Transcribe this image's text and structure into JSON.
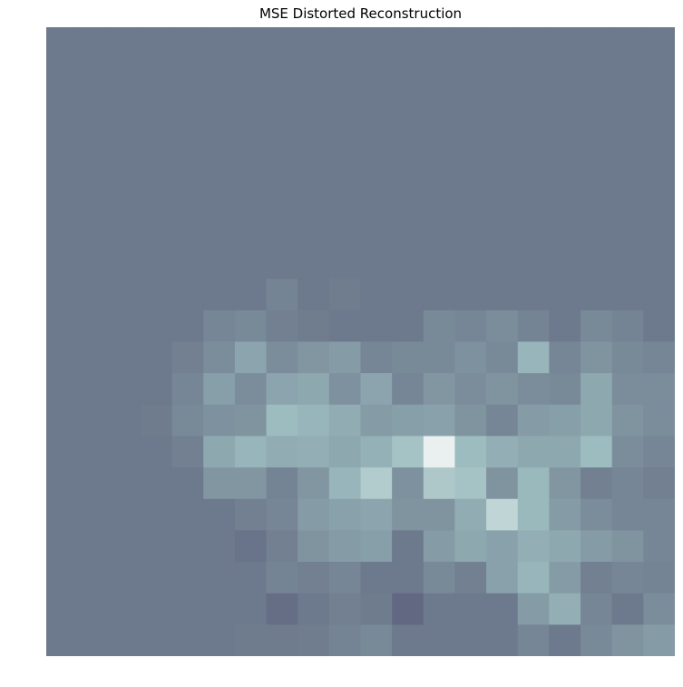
{
  "chart_data": {
    "type": "heatmap",
    "title": "MSE Distorted Reconstruction",
    "xlabel": "",
    "ylabel": "",
    "axes_visible": false,
    "grid": false,
    "colormap": "bone",
    "colormap_stops": [
      "#6d798c",
      "#9cbcbf",
      "#eef4f2"
    ],
    "rows": 20,
    "cols": 20,
    "values": [
      [
        0.0,
        0.0,
        0.0,
        0.0,
        0.0,
        0.0,
        0.0,
        0.0,
        0.0,
        0.0,
        0.0,
        0.0,
        0.0,
        0.0,
        0.0,
        0.0,
        0.0,
        0.0,
        0.0,
        0.0
      ],
      [
        0.0,
        0.0,
        0.0,
        0.0,
        0.0,
        0.0,
        0.0,
        0.0,
        0.0,
        0.0,
        0.0,
        0.0,
        0.0,
        0.0,
        0.0,
        0.0,
        0.0,
        0.0,
        0.0,
        0.0
      ],
      [
        0.0,
        0.0,
        0.0,
        0.0,
        0.0,
        0.0,
        0.0,
        0.0,
        0.0,
        0.0,
        0.0,
        0.0,
        0.0,
        0.0,
        0.0,
        0.0,
        0.0,
        0.0,
        0.0,
        0.0
      ],
      [
        0.0,
        0.0,
        0.0,
        0.0,
        0.0,
        0.0,
        0.0,
        0.0,
        0.0,
        0.0,
        0.0,
        0.0,
        0.0,
        0.0,
        0.0,
        0.0,
        0.0,
        0.0,
        0.0,
        0.0
      ],
      [
        0.0,
        0.0,
        0.0,
        0.0,
        0.0,
        0.0,
        0.0,
        0.0,
        0.0,
        0.0,
        0.0,
        0.0,
        0.0,
        0.0,
        0.0,
        0.0,
        0.0,
        0.0,
        0.0,
        0.0
      ],
      [
        0.0,
        0.0,
        0.0,
        0.0,
        0.0,
        0.0,
        0.0,
        0.0,
        0.0,
        0.0,
        0.0,
        0.0,
        0.0,
        0.0,
        0.0,
        0.0,
        0.0,
        0.0,
        0.0,
        0.0
      ],
      [
        0.0,
        0.0,
        0.0,
        0.0,
        0.0,
        0.0,
        0.0,
        0.0,
        0.0,
        0.0,
        0.0,
        0.0,
        0.0,
        0.0,
        0.0,
        0.0,
        0.0,
        0.0,
        0.0,
        0.0
      ],
      [
        0.0,
        0.0,
        0.0,
        0.0,
        0.0,
        0.0,
        0.0,
        0.0,
        0.0,
        0.0,
        0.0,
        0.0,
        0.0,
        0.0,
        0.0,
        0.0,
        0.0,
        0.0,
        0.0,
        0.0
      ],
      [
        0.0,
        0.0,
        0.0,
        0.0,
        0.0,
        0.0,
        0.0,
        0.08,
        0.0,
        0.03,
        0.0,
        0.0,
        0.0,
        0.0,
        0.0,
        0.0,
        0.0,
        0.0,
        0.0,
        0.0
      ],
      [
        0.0,
        0.0,
        0.0,
        0.0,
        0.0,
        0.1,
        0.12,
        0.05,
        0.03,
        0.0,
        0.0,
        0.0,
        0.12,
        0.1,
        0.15,
        0.08,
        0.0,
        0.12,
        0.08,
        0.0
      ],
      [
        0.0,
        0.0,
        0.0,
        0.0,
        0.05,
        0.15,
        0.32,
        0.15,
        0.22,
        0.25,
        0.1,
        0.12,
        0.12,
        0.18,
        0.12,
        0.45,
        0.1,
        0.2,
        0.12,
        0.1
      ],
      [
        0.0,
        0.0,
        0.0,
        0.0,
        0.1,
        0.28,
        0.15,
        0.32,
        0.35,
        0.18,
        0.32,
        0.1,
        0.22,
        0.15,
        0.2,
        0.15,
        0.12,
        0.35,
        0.15,
        0.15
      ],
      [
        0.0,
        0.0,
        0.0,
        0.02,
        0.12,
        0.18,
        0.2,
        0.5,
        0.45,
        0.38,
        0.25,
        0.28,
        0.3,
        0.2,
        0.1,
        0.25,
        0.28,
        0.35,
        0.2,
        0.15
      ],
      [
        0.0,
        0.0,
        0.0,
        0.0,
        0.05,
        0.35,
        0.45,
        0.38,
        0.4,
        0.35,
        0.42,
        0.55,
        0.92,
        0.5,
        0.4,
        0.35,
        0.35,
        0.5,
        0.15,
        0.1
      ],
      [
        0.0,
        0.0,
        0.0,
        0.0,
        0.0,
        0.22,
        0.22,
        0.08,
        0.22,
        0.45,
        0.62,
        0.18,
        0.6,
        0.55,
        0.2,
        0.48,
        0.22,
        0.05,
        0.1,
        0.05
      ],
      [
        0.0,
        0.0,
        0.0,
        0.0,
        0.0,
        0.0,
        0.05,
        0.1,
        0.25,
        0.3,
        0.32,
        0.2,
        0.2,
        0.38,
        0.7,
        0.48,
        0.25,
        0.15,
        0.1,
        0.1
      ],
      [
        0.0,
        0.0,
        0.0,
        0.0,
        0.0,
        0.0,
        -0.05,
        0.05,
        0.2,
        0.25,
        0.28,
        0.0,
        0.25,
        0.35,
        0.3,
        0.4,
        0.35,
        0.25,
        0.2,
        0.1
      ],
      [
        0.0,
        0.0,
        0.0,
        0.0,
        0.0,
        0.0,
        0.0,
        0.08,
        0.05,
        0.1,
        0.0,
        0.0,
        0.12,
        0.05,
        0.3,
        0.45,
        0.25,
        0.05,
        0.1,
        0.08
      ],
      [
        0.0,
        0.0,
        0.0,
        0.0,
        0.0,
        0.0,
        0.0,
        -0.1,
        0.0,
        0.05,
        0.02,
        -0.15,
        0.0,
        0.0,
        0.0,
        0.25,
        0.4,
        0.1,
        0.0,
        0.15
      ],
      [
        0.0,
        0.0,
        0.0,
        0.0,
        0.0,
        0.0,
        0.02,
        0.02,
        0.03,
        0.08,
        0.12,
        0.0,
        0.0,
        0.0,
        0.0,
        0.1,
        0.0,
        0.12,
        0.2,
        0.25
      ]
    ]
  }
}
